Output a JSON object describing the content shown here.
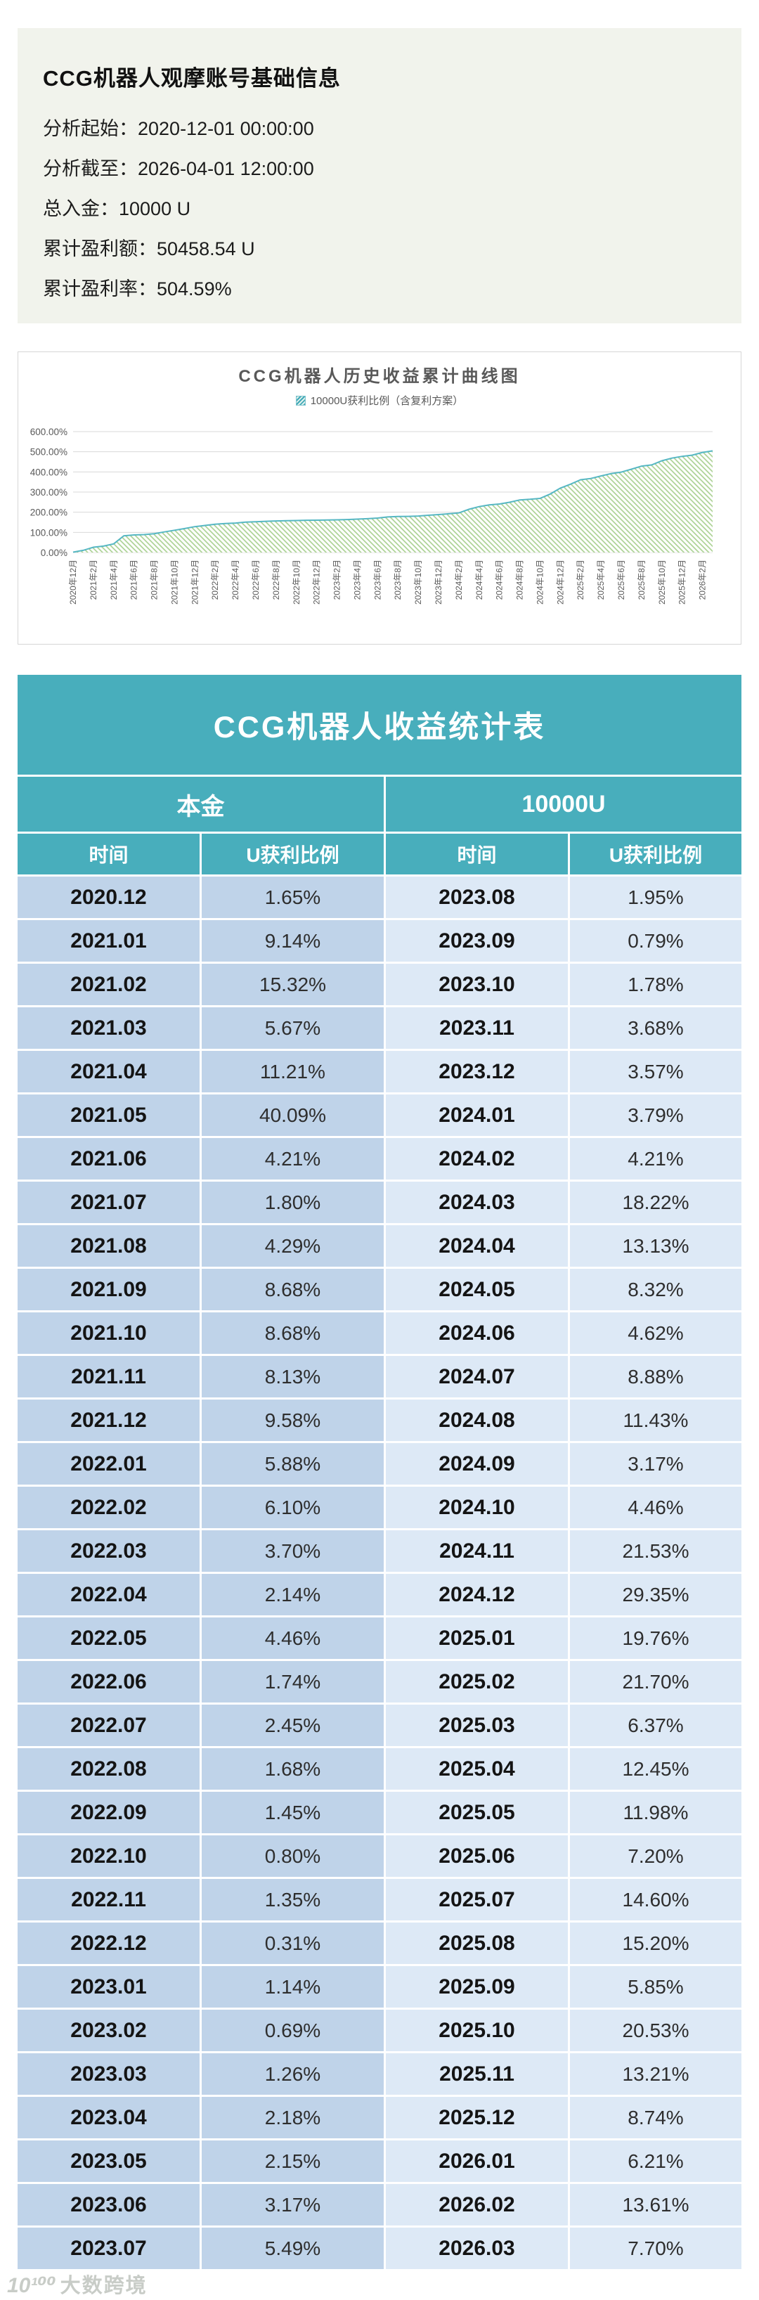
{
  "header": {
    "title": "CCG机器人观摩账号基础信息",
    "rows": [
      {
        "label": "分析起始：",
        "value": "2020-12-01 00:00:00"
      },
      {
        "label": "分析截至：",
        "value": "2026-04-01 12:00:00"
      },
      {
        "label": "总入金：",
        "value": "10000 U"
      },
      {
        "label": "累计盈利额：",
        "value": "50458.54 U"
      },
      {
        "label": "累计盈利率：",
        "value": "504.59%"
      }
    ]
  },
  "chart_data": {
    "type": "area",
    "title": "CCG机器人历史收益累计曲线图",
    "legend": "10000U获利比例（含复利方案）",
    "legend_position": "top",
    "grid": true,
    "ylim": [
      0,
      600
    ],
    "y_ticks": [
      "0.00%",
      "100.00%",
      "200.00%",
      "300.00%",
      "400.00%",
      "500.00%",
      "600.00%"
    ],
    "x_ticks": [
      "2020年12月",
      "2021年2月",
      "2021年4月",
      "2021年6月",
      "2021年8月",
      "2021年10月",
      "2021年12月",
      "2022年2月",
      "2022年4月",
      "2022年6月",
      "2022年8月",
      "2022年10月",
      "2022年12月",
      "2023年2月",
      "2023年4月",
      "2023年6月",
      "2023年8月",
      "2023年10月",
      "2023年12月",
      "2024年2月",
      "2024年4月",
      "2024年6月",
      "2024年8月",
      "2024年10月",
      "2024年12月",
      "2025年2月",
      "2025年4月",
      "2025年6月",
      "2025年8月",
      "2025年10月",
      "2025年12月",
      "2026年2月"
    ],
    "x_months": [
      "2020.12",
      "2021.01",
      "2021.02",
      "2021.03",
      "2021.04",
      "2021.05",
      "2021.06",
      "2021.07",
      "2021.08",
      "2021.09",
      "2021.10",
      "2021.11",
      "2021.12",
      "2022.01",
      "2022.02",
      "2022.03",
      "2022.04",
      "2022.05",
      "2022.06",
      "2022.07",
      "2022.08",
      "2022.09",
      "2022.10",
      "2022.11",
      "2022.12",
      "2023.01",
      "2023.02",
      "2023.03",
      "2023.04",
      "2023.05",
      "2023.06",
      "2023.07",
      "2023.08",
      "2023.09",
      "2023.10",
      "2023.11",
      "2023.12",
      "2024.01",
      "2024.02",
      "2024.03",
      "2024.04",
      "2024.05",
      "2024.06",
      "2024.07",
      "2024.08",
      "2024.09",
      "2024.10",
      "2024.11",
      "2024.12",
      "2025.01",
      "2025.02",
      "2025.03",
      "2025.04",
      "2025.05",
      "2025.06",
      "2025.07",
      "2025.08",
      "2025.09",
      "2025.10",
      "2025.11",
      "2025.12",
      "2026.01",
      "2026.02",
      "2026.03"
    ],
    "cumulative_pct": [
      1.65,
      10.79,
      26.11,
      31.78,
      42.99,
      83.08,
      87.29,
      89.09,
      93.38,
      102.06,
      110.74,
      118.87,
      128.45,
      134.33,
      140.43,
      144.13,
      146.27,
      150.73,
      152.47,
      154.92,
      156.6,
      158.05,
      158.85,
      160.2,
      160.51,
      161.65,
      162.34,
      163.6,
      165.78,
      167.93,
      171.1,
      176.59,
      178.54,
      179.33,
      181.11,
      184.79,
      188.36,
      192.15,
      196.36,
      214.58,
      227.71,
      236.03,
      240.65,
      249.53,
      260.96,
      264.13,
      268.59,
      290.12,
      319.47,
      339.23,
      360.93,
      367.3,
      379.75,
      391.73,
      398.93,
      413.53,
      428.73,
      434.58,
      455.11,
      468.32,
      477.06,
      483.27,
      496.88,
      504.58
    ]
  },
  "table": {
    "title": "CCG机器人收益统计表",
    "principal_label": "本金",
    "principal_value": "10000U",
    "columns": [
      "时间",
      "U获利比例",
      "时间",
      "U获利比例"
    ],
    "rows": [
      {
        "m1": "2020.12",
        "v1": "1.65%",
        "m2": "2023.08",
        "v2": "1.95%"
      },
      {
        "m1": "2021.01",
        "v1": "9.14%",
        "m2": "2023.09",
        "v2": "0.79%"
      },
      {
        "m1": "2021.02",
        "v1": "15.32%",
        "m2": "2023.10",
        "v2": "1.78%"
      },
      {
        "m1": "2021.03",
        "v1": "5.67%",
        "m2": "2023.11",
        "v2": "3.68%"
      },
      {
        "m1": "2021.04",
        "v1": "11.21%",
        "m2": "2023.12",
        "v2": "3.57%"
      },
      {
        "m1": "2021.05",
        "v1": "40.09%",
        "m2": "2024.01",
        "v2": "3.79%"
      },
      {
        "m1": "2021.06",
        "v1": "4.21%",
        "m2": "2024.02",
        "v2": "4.21%"
      },
      {
        "m1": "2021.07",
        "v1": "1.80%",
        "m2": "2024.03",
        "v2": "18.22%"
      },
      {
        "m1": "2021.08",
        "v1": "4.29%",
        "m2": "2024.04",
        "v2": "13.13%"
      },
      {
        "m1": "2021.09",
        "v1": "8.68%",
        "m2": "2024.05",
        "v2": "8.32%"
      },
      {
        "m1": "2021.10",
        "v1": "8.68%",
        "m2": "2024.06",
        "v2": "4.62%"
      },
      {
        "m1": "2021.11",
        "v1": "8.13%",
        "m2": "2024.07",
        "v2": "8.88%"
      },
      {
        "m1": "2021.12",
        "v1": "9.58%",
        "m2": "2024.08",
        "v2": "11.43%"
      },
      {
        "m1": "2022.01",
        "v1": "5.88%",
        "m2": "2024.09",
        "v2": "3.17%"
      },
      {
        "m1": "2022.02",
        "v1": "6.10%",
        "m2": "2024.10",
        "v2": "4.46%"
      },
      {
        "m1": "2022.03",
        "v1": "3.70%",
        "m2": "2024.11",
        "v2": "21.53%"
      },
      {
        "m1": "2022.04",
        "v1": "2.14%",
        "m2": "2024.12",
        "v2": "29.35%"
      },
      {
        "m1": "2022.05",
        "v1": "4.46%",
        "m2": "2025.01",
        "v2": "19.76%"
      },
      {
        "m1": "2022.06",
        "v1": "1.74%",
        "m2": "2025.02",
        "v2": "21.70%"
      },
      {
        "m1": "2022.07",
        "v1": "2.45%",
        "m2": "2025.03",
        "v2": "6.37%"
      },
      {
        "m1": "2022.08",
        "v1": "1.68%",
        "m2": "2025.04",
        "v2": "12.45%"
      },
      {
        "m1": "2022.09",
        "v1": "1.45%",
        "m2": "2025.05",
        "v2": "11.98%"
      },
      {
        "m1": "2022.10",
        "v1": "0.80%",
        "m2": "2025.06",
        "v2": "7.20%"
      },
      {
        "m1": "2022.11",
        "v1": "1.35%",
        "m2": "2025.07",
        "v2": "14.60%"
      },
      {
        "m1": "2022.12",
        "v1": "0.31%",
        "m2": "2025.08",
        "v2": "15.20%"
      },
      {
        "m1": "2023.01",
        "v1": "1.14%",
        "m2": "2025.09",
        "v2": "5.85%"
      },
      {
        "m1": "2023.02",
        "v1": "0.69%",
        "m2": "2025.10",
        "v2": "20.53%"
      },
      {
        "m1": "2023.03",
        "v1": "1.26%",
        "m2": "2025.11",
        "v2": "13.21%"
      },
      {
        "m1": "2023.04",
        "v1": "2.18%",
        "m2": "2025.12",
        "v2": "8.74%"
      },
      {
        "m1": "2023.05",
        "v1": "2.15%",
        "m2": "2026.01",
        "v2": "6.21%"
      },
      {
        "m1": "2023.06",
        "v1": "3.17%",
        "m2": "2026.02",
        "v2": "13.61%"
      },
      {
        "m1": "2023.07",
        "v1": "5.49%",
        "m2": "2026.03",
        "v2": "7.70%"
      }
    ]
  },
  "watermark": {
    "logo": "10¹⁰⁰",
    "text": "大数跨境"
  },
  "colors": {
    "accent_teal": "#48aebc",
    "chart_line": "#56b7c3",
    "chart_hatch_green": "#a6cf8d",
    "header_card_bg": "#f1f3ec",
    "table_left_bg": "#bfd3e9",
    "table_right_bg": "#dde9f6"
  }
}
